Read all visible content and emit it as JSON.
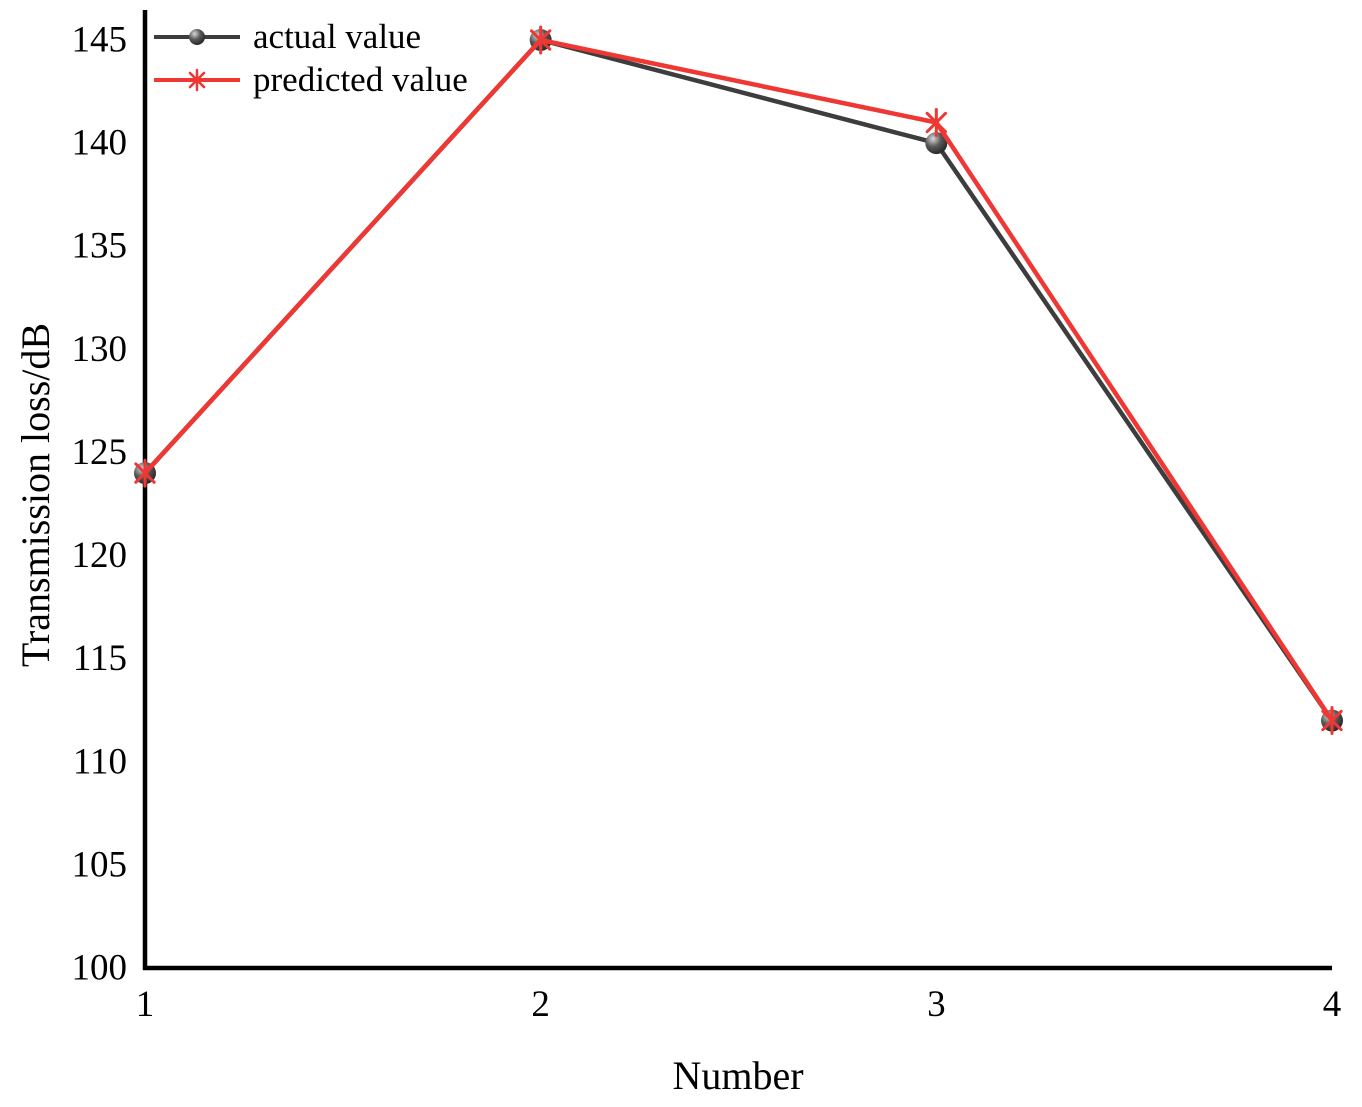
{
  "chart_data": {
    "type": "line",
    "x": [
      1,
      2,
      3,
      4
    ],
    "series": [
      {
        "name": "actual value",
        "values": [
          124,
          145,
          140,
          112
        ],
        "color": "#3d3d3d",
        "marker": "sphere"
      },
      {
        "name": "predicted value",
        "values": [
          124,
          145,
          141,
          112
        ],
        "color": "#ef3734",
        "marker": "asterisk"
      }
    ],
    "xlabel": "Number",
    "ylabel": "Transmission loss/dB",
    "xticks": [
      1,
      2,
      3,
      4
    ],
    "yticks": [
      100,
      105,
      110,
      115,
      120,
      125,
      130,
      135,
      140,
      145
    ],
    "xlim": [
      1,
      4
    ],
    "ylim": [
      100,
      145
    ],
    "grid": false,
    "legend_position": "top-left",
    "axis_color": "#000000",
    "background": "#ffffff"
  }
}
